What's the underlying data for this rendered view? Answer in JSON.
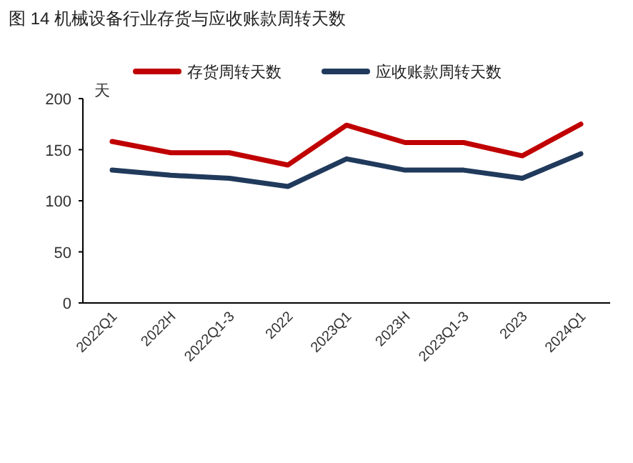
{
  "chart_data": {
    "type": "line",
    "title": "图 14   机械设备行业存货与应收账款周转天数",
    "ylabel": "天",
    "categories": [
      "2022Q1",
      "2022H",
      "2022Q1-3",
      "2022",
      "2023Q1",
      "2023H",
      "2023Q1-3",
      "2023",
      "2024Q1"
    ],
    "series": [
      {
        "name": "存货周转天数",
        "color": "#c00000",
        "values": [
          158,
          147,
          147,
          135,
          174,
          157,
          157,
          144,
          175
        ]
      },
      {
        "name": "应收账款周转天数",
        "color": "#203a5c",
        "values": [
          130,
          125,
          122,
          114,
          141,
          130,
          130,
          122,
          146
        ]
      }
    ],
    "ylim": [
      0,
      200
    ],
    "yticks": [
      0,
      50,
      100,
      150,
      200
    ],
    "legend": "top",
    "grid": false,
    "marker": "none",
    "line_style": "solid"
  }
}
